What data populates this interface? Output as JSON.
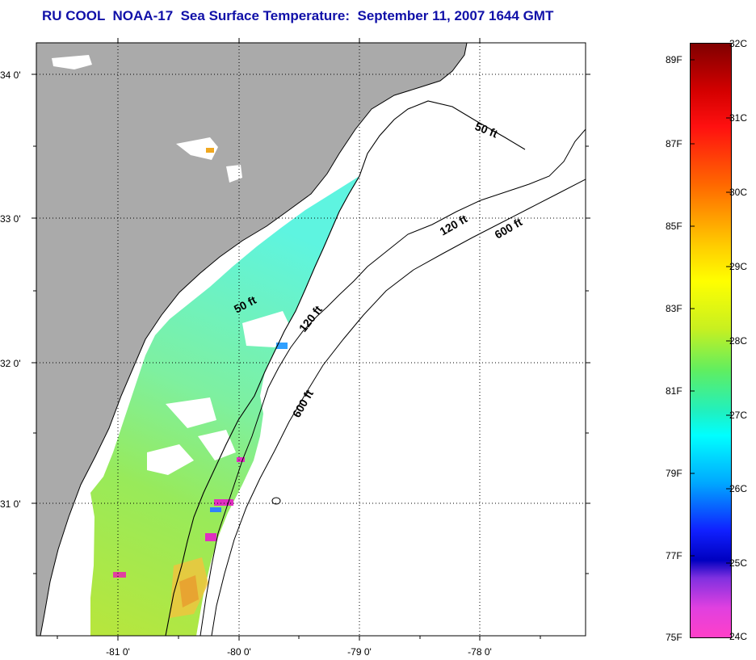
{
  "title": "RU COOL  NOAA-17  Sea Surface Temperature:  September 11, 2007 1644 GMT",
  "map": {
    "lat_labels": [
      "34 0'",
      "33 0'",
      "32 0'",
      "31 0'"
    ],
    "lon_labels": [
      "-81 0'",
      "-80 0'",
      "-79 0'",
      "-78 0'"
    ],
    "isobath_labels": [
      "50 ft",
      "120 ft",
      "600 ft",
      "50 ft",
      "120 ft",
      "600 ft"
    ]
  },
  "colorbar": {
    "celsius": [
      "32C",
      "31C",
      "30C",
      "29C",
      "28C",
      "27C",
      "26C",
      "25C",
      "24C"
    ],
    "fahrenheit": [
      "89F",
      "87F",
      "85F",
      "83F",
      "81F",
      "79F",
      "77F",
      "75F"
    ]
  },
  "colors": {
    "title": "#1010a8",
    "land": "#aaaaaa",
    "water": "#ffffff",
    "cloud_gaps": "#ffffff"
  }
}
